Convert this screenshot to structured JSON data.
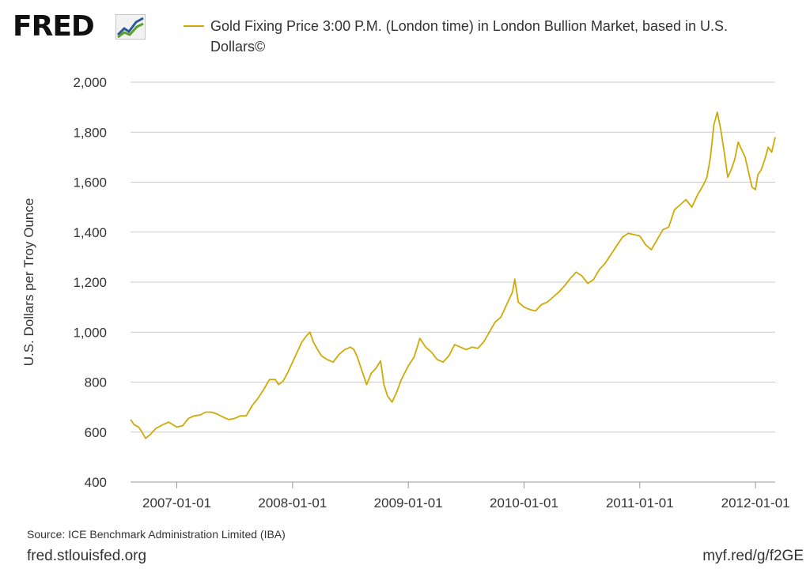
{
  "header": {
    "logo_text": "FRED",
    "logo_icon": "chart-line-icon"
  },
  "legend": {
    "label": "Gold Fixing Price 3:00 P.M. (London time) in London Bullion Market, based in U.S. Dollars©"
  },
  "footer": {
    "source": "Source: ICE Benchmark Administration Limited (IBA)",
    "site": "fred.stlouisfed.org",
    "shortlink": "myf.red/g/f2GE"
  },
  "colors": {
    "series": "#cfaa06",
    "grid": "#cccccc",
    "text": "#333333",
    "logo_line1": "#2b5797",
    "logo_line2": "#5aa02c"
  },
  "chart_data": {
    "type": "line",
    "title": "Gold Fixing Price 3:00 P.M. (London time) in London Bullion Market, based in U.S. Dollars©",
    "xlabel": "",
    "ylabel": "U.S. Dollars per Troy Ounce",
    "ylim": [
      400,
      2000
    ],
    "xlim": [
      2006.6,
      2012.17
    ],
    "yticks": [
      400,
      600,
      800,
      1000,
      1200,
      1400,
      1600,
      1800,
      2000
    ],
    "ytick_labels": [
      "400",
      "600",
      "800",
      "1,000",
      "1,200",
      "1,400",
      "1,600",
      "1,800",
      "2,000"
    ],
    "xticks": [
      2007.0,
      2008.0,
      2009.0,
      2010.0,
      2011.0,
      2012.0
    ],
    "xtick_labels": [
      "2007-01-01",
      "2008-01-01",
      "2009-01-01",
      "2010-01-01",
      "2011-01-01",
      "2012-01-01"
    ],
    "grid": true,
    "series": [
      {
        "name": "Gold Fixing Price 3:00 P.M. (London time) in London Bullion Market, based in U.S. Dollars©",
        "x": [
          2006.6,
          2006.63,
          2006.67,
          2006.7,
          2006.73,
          2006.77,
          2006.82,
          2006.88,
          2006.93,
          2007.0,
          2007.05,
          2007.1,
          2007.15,
          2007.2,
          2007.25,
          2007.3,
          2007.35,
          2007.4,
          2007.45,
          2007.5,
          2007.55,
          2007.6,
          2007.65,
          2007.7,
          2007.75,
          2007.8,
          2007.85,
          2007.88,
          2007.92,
          2007.96,
          2008.0,
          2008.04,
          2008.08,
          2008.12,
          2008.15,
          2008.18,
          2008.21,
          2008.25,
          2008.3,
          2008.35,
          2008.4,
          2008.45,
          2008.5,
          2008.53,
          2008.56,
          2008.6,
          2008.64,
          2008.68,
          2008.72,
          2008.76,
          2008.79,
          2008.82,
          2008.86,
          2008.9,
          2008.94,
          2009.0,
          2009.05,
          2009.1,
          2009.15,
          2009.2,
          2009.25,
          2009.3,
          2009.35,
          2009.4,
          2009.45,
          2009.5,
          2009.55,
          2009.6,
          2009.65,
          2009.7,
          2009.75,
          2009.8,
          2009.85,
          2009.9,
          2009.92,
          2009.95,
          2010.0,
          2010.05,
          2010.1,
          2010.15,
          2010.2,
          2010.25,
          2010.3,
          2010.35,
          2010.4,
          2010.45,
          2010.5,
          2010.55,
          2010.6,
          2010.65,
          2010.7,
          2010.75,
          2010.8,
          2010.85,
          2010.9,
          2010.95,
          2011.0,
          2011.05,
          2011.1,
          2011.15,
          2011.2,
          2011.25,
          2011.3,
          2011.35,
          2011.4,
          2011.45,
          2011.5,
          2011.55,
          2011.58,
          2011.61,
          2011.64,
          2011.67,
          2011.7,
          2011.73,
          2011.76,
          2011.79,
          2011.82,
          2011.85,
          2011.88,
          2011.91,
          2011.94,
          2011.97,
          2012.0,
          2012.02,
          2012.05,
          2012.08,
          2012.11,
          2012.14,
          2012.17
        ],
        "values": [
          650,
          630,
          620,
          600,
          575,
          590,
          615,
          630,
          640,
          620,
          625,
          655,
          665,
          668,
          680,
          680,
          672,
          660,
          650,
          655,
          665,
          665,
          705,
          735,
          770,
          810,
          810,
          790,
          805,
          840,
          880,
          920,
          960,
          985,
          1000,
          960,
          935,
          905,
          890,
          880,
          910,
          930,
          940,
          930,
          900,
          845,
          790,
          835,
          855,
          885,
          790,
          745,
          720,
          760,
          810,
          865,
          900,
          975,
          940,
          920,
          890,
          880,
          905,
          950,
          940,
          930,
          940,
          935,
          960,
          1000,
          1040,
          1060,
          1110,
          1160,
          1212,
          1120,
          1100,
          1090,
          1085,
          1110,
          1120,
          1140,
          1160,
          1185,
          1215,
          1240,
          1225,
          1195,
          1210,
          1250,
          1275,
          1310,
          1345,
          1380,
          1395,
          1390,
          1385,
          1350,
          1330,
          1370,
          1410,
          1420,
          1490,
          1510,
          1530,
          1500,
          1550,
          1590,
          1620,
          1700,
          1830,
          1880,
          1810,
          1720,
          1620,
          1650,
          1690,
          1760,
          1730,
          1700,
          1640,
          1580,
          1570,
          1630,
          1650,
          1690,
          1740,
          1720,
          1780
        ]
      }
    ]
  }
}
